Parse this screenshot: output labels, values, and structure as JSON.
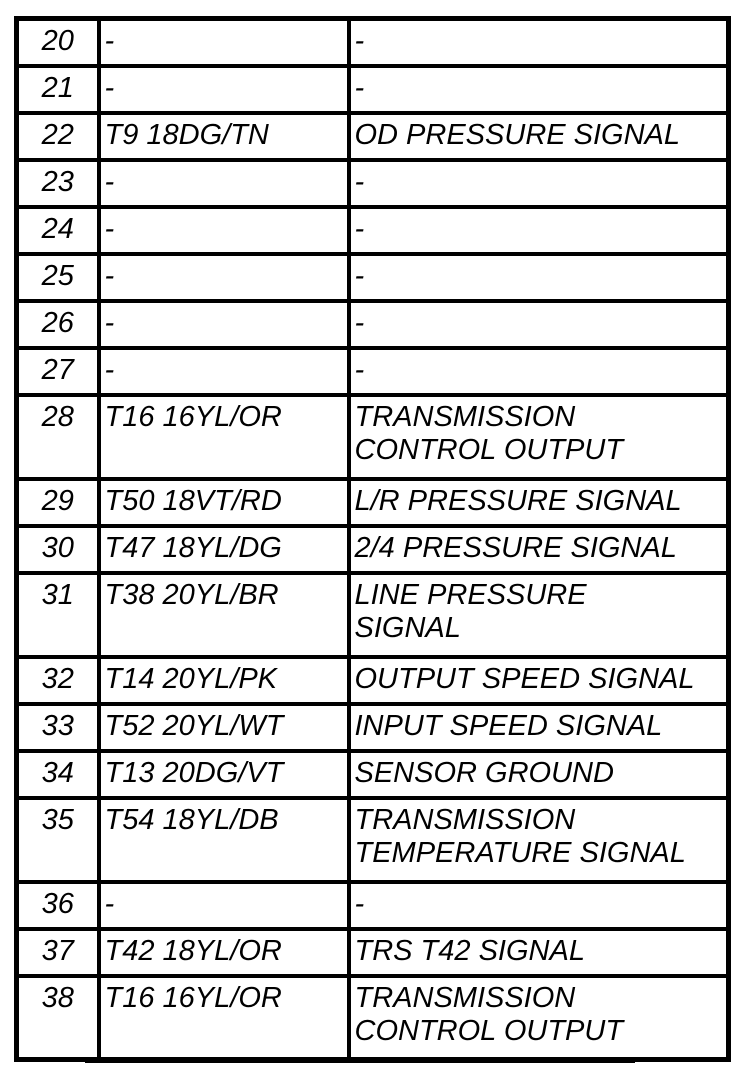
{
  "page": {
    "background_color": "#ffffff",
    "text_color": "#000000"
  },
  "table": {
    "description": "connector-pinout-table-continuation",
    "rows": [
      {
        "pin": "20",
        "wire": "-",
        "function": "-"
      },
      {
        "pin": "21",
        "wire": "-",
        "function": "-"
      },
      {
        "pin": "22",
        "wire": "T9 18DG/TN",
        "function": "OD PRESSURE SIGNAL"
      },
      {
        "pin": "23",
        "wire": "-",
        "function": "-"
      },
      {
        "pin": "24",
        "wire": "-",
        "function": "-"
      },
      {
        "pin": "25",
        "wire": "-",
        "function": "-"
      },
      {
        "pin": "26",
        "wire": "-",
        "function": "-"
      },
      {
        "pin": "27",
        "wire": "-",
        "function": "-"
      },
      {
        "pin": "28",
        "wire": "T16 16YL/OR",
        "function": "TRANSMISSION\nCONTROL OUTPUT"
      },
      {
        "pin": "29",
        "wire": "T50 18VT/RD",
        "function": "L/R PRESSURE SIGNAL"
      },
      {
        "pin": "30",
        "wire": "T47 18YL/DG",
        "function": "2/4 PRESSURE SIGNAL"
      },
      {
        "pin": "31",
        "wire": "T38 20YL/BR",
        "function": "LINE PRESSURE\nSIGNAL"
      },
      {
        "pin": "32",
        "wire": "T14 20YL/PK",
        "function": "OUTPUT SPEED SIGNAL"
      },
      {
        "pin": "33",
        "wire": "T52 20YL/WT",
        "function": "INPUT SPEED SIGNAL"
      },
      {
        "pin": "34",
        "wire": "T13 20DG/VT",
        "function": "SENSOR GROUND"
      },
      {
        "pin": "35",
        "wire": "T54 18YL/DB",
        "function": "TRANSMISSION\nTEMPERATURE SIGNAL"
      },
      {
        "pin": "36",
        "wire": "-",
        "function": "-"
      },
      {
        "pin": "37",
        "wire": "T42 18YL/OR",
        "function": "TRS T42 SIGNAL"
      },
      {
        "pin": "38",
        "wire": "T16 16YL/OR",
        "function": "TRANSMISSION\nCONTROL OUTPUT"
      }
    ]
  }
}
